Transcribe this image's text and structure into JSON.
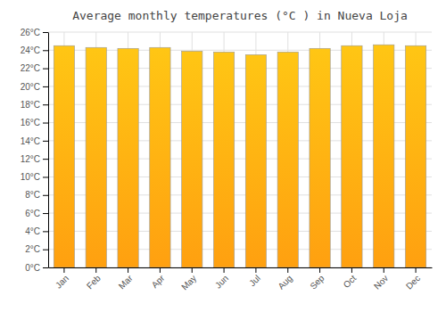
{
  "chart_data": {
    "type": "bar",
    "title": "Average monthly temperatures (°C ) in Nueva Loja",
    "categories": [
      "Jan",
      "Feb",
      "Mar",
      "Apr",
      "May",
      "Jun",
      "Jul",
      "Aug",
      "Sep",
      "Oct",
      "Nov",
      "Dec"
    ],
    "values": [
      24.5,
      24.3,
      24.2,
      24.3,
      23.9,
      23.8,
      23.5,
      23.8,
      24.2,
      24.5,
      24.6,
      24.5
    ],
    "color": "#FFA010",
    "ylim": [
      0,
      26
    ],
    "yticks": [
      {
        "value": 0,
        "label": "0°C"
      },
      {
        "value": 2,
        "label": "2°C"
      },
      {
        "value": 4,
        "label": "4°C"
      },
      {
        "value": 6,
        "label": "6°C"
      },
      {
        "value": 8,
        "label": "8°C"
      },
      {
        "value": 10,
        "label": "10°C"
      },
      {
        "value": 12,
        "label": "12°C"
      },
      {
        "value": 14,
        "label": "14°C"
      },
      {
        "value": 16,
        "label": "16°C"
      },
      {
        "value": 18,
        "label": "18°C"
      },
      {
        "value": 20,
        "label": "20°C"
      },
      {
        "value": 22,
        "label": "22°C"
      },
      {
        "value": 24,
        "label": "24°C"
      },
      {
        "value": 26,
        "label": "26°C"
      }
    ],
    "grid": true
  }
}
